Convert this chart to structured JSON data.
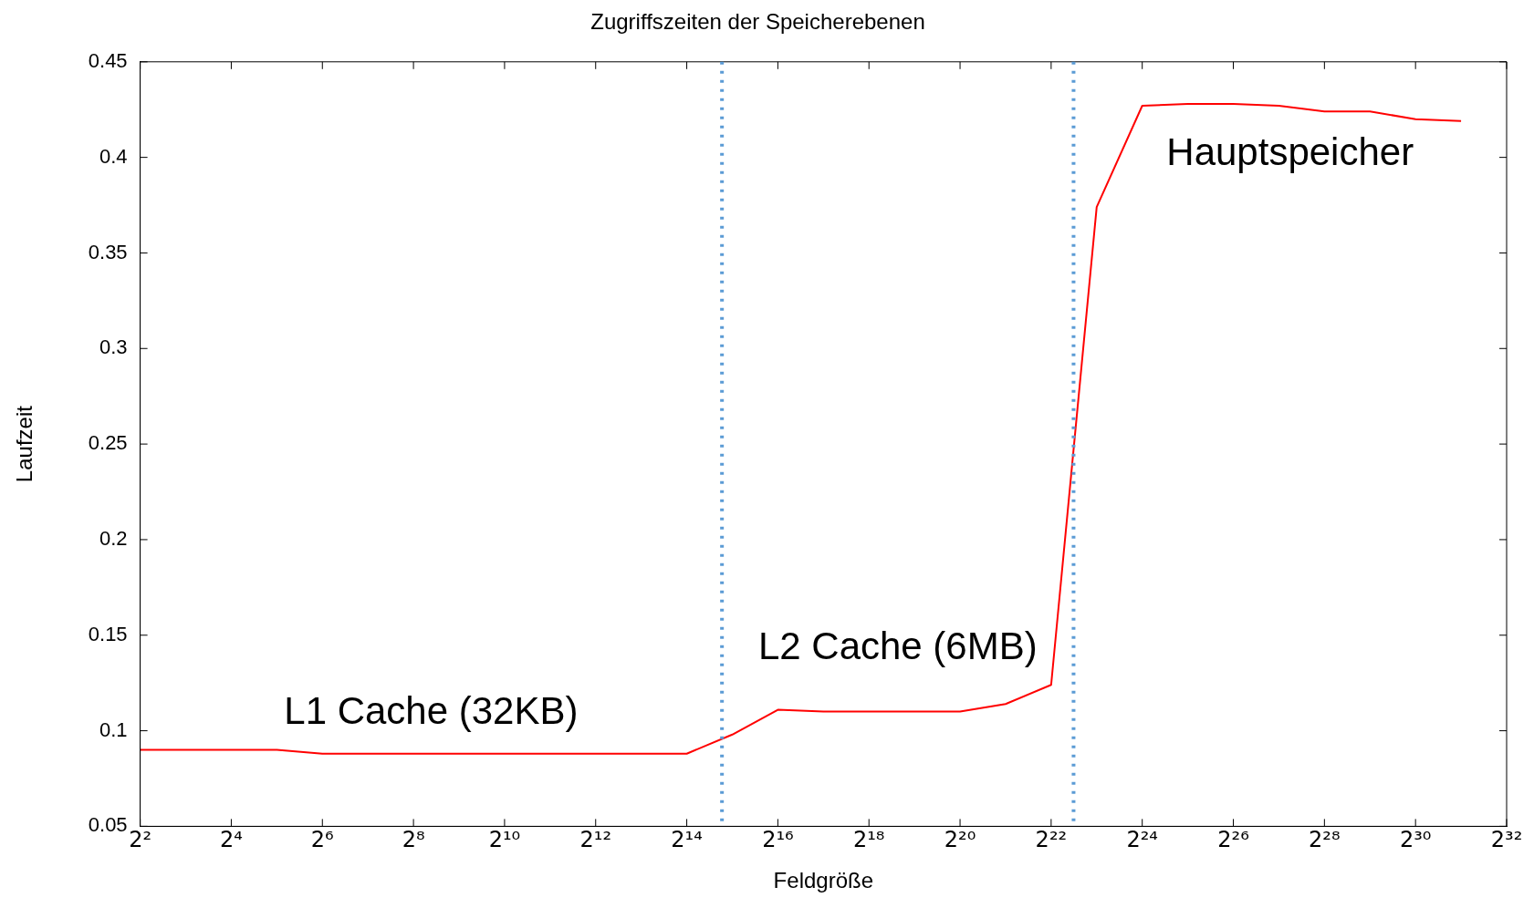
{
  "chart_data": {
    "type": "line",
    "title": "Zugriffszeiten der Speicherebenen",
    "xlabel": "Feldgröße",
    "ylabel": "Laufzeit",
    "x": [
      4,
      8,
      16,
      32,
      64,
      128,
      256,
      512,
      1024,
      2048,
      4096,
      8192,
      16384,
      32768,
      65536,
      131072,
      262144,
      524288,
      1048576,
      2097152,
      4194304,
      8388608,
      16777216,
      33554432,
      67108864,
      134217728,
      268435456,
      536870912,
      1073741824,
      2147483648
    ],
    "series": [
      {
        "color": "#ff0000",
        "values": [
          0.09,
          0.09,
          0.09,
          0.09,
          0.088,
          0.088,
          0.088,
          0.088,
          0.088,
          0.088,
          0.088,
          0.088,
          0.088,
          0.098,
          0.111,
          0.11,
          0.11,
          0.11,
          0.11,
          0.114,
          0.124,
          0.374,
          0.427,
          0.428,
          0.428,
          0.427,
          0.424,
          0.424,
          0.42,
          0.419
        ]
      }
    ],
    "log": "x",
    "xlim": [
      4,
      4294967296
    ],
    "xticks": [
      {
        "value": 4,
        "label": "2²"
      },
      {
        "value": 16,
        "label": "2⁴"
      },
      {
        "value": 64,
        "label": "2⁶"
      },
      {
        "value": 256,
        "label": "2⁸"
      },
      {
        "value": 1024,
        "label": "2¹⁰"
      },
      {
        "value": 4096,
        "label": "2¹²"
      },
      {
        "value": 16384,
        "label": "2¹⁴"
      },
      {
        "value": 65536,
        "label": "2¹⁶"
      },
      {
        "value": 262144,
        "label": "2¹⁸"
      },
      {
        "value": 1048576,
        "label": "2²⁰"
      },
      {
        "value": 4194304,
        "label": "2²²"
      },
      {
        "value": 16777216,
        "label": "2²⁴"
      },
      {
        "value": 67108864,
        "label": "2²⁶"
      },
      {
        "value": 268435456,
        "label": "2²⁸"
      },
      {
        "value": 1073741824,
        "label": "2³⁰"
      },
      {
        "value": 4294967296,
        "label": "2³²"
      }
    ],
    "ylim": [
      0.05,
      0.45
    ],
    "yticks": [
      0.05,
      0.1,
      0.15,
      0.2,
      0.25,
      0.3,
      0.35,
      0.4,
      0.45
    ],
    "ref_lines": [
      {
        "axis": "x",
        "value": 28000,
        "color": "#5b9bd5",
        "line_style": "dotted"
      },
      {
        "axis": "x",
        "value": 5900000,
        "color": "#5b9bd5",
        "line_style": "dotted"
      }
    ],
    "annotations": [
      "L1 Cache (32KB)",
      "L2 Cache (6MB)",
      "Hauptspeicher"
    ],
    "grid": false,
    "legend": false,
    "marker": "none",
    "line_style": "solid"
  }
}
